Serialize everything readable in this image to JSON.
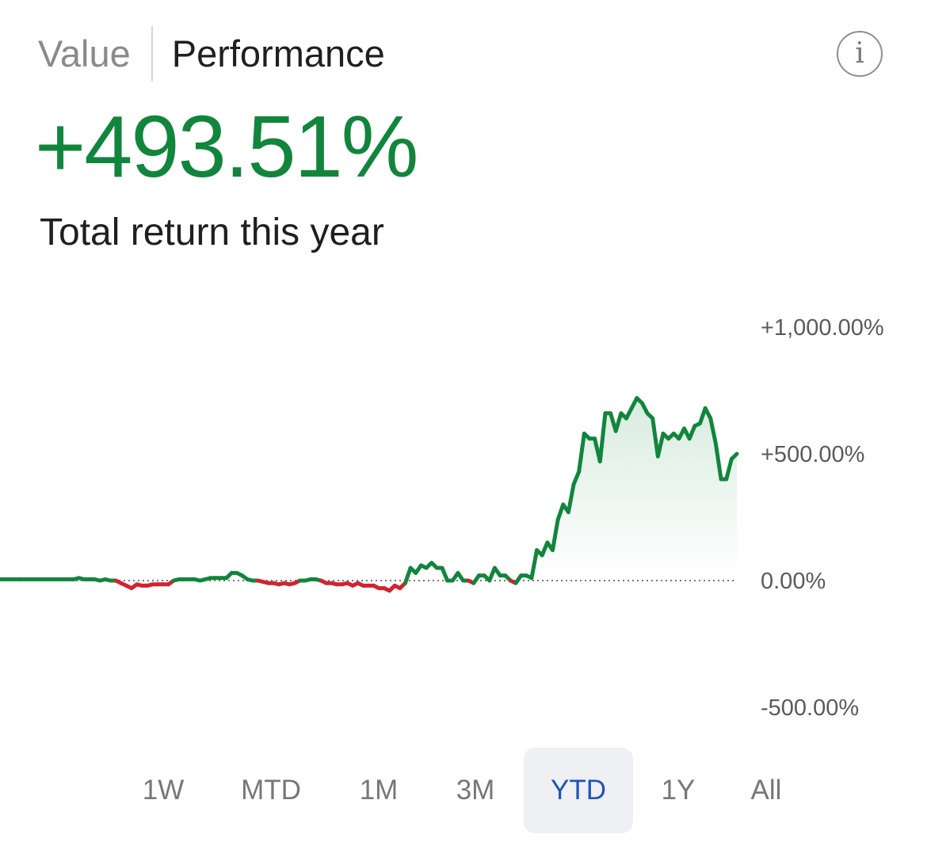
{
  "tabs": {
    "value": "Value",
    "performance": "Performance",
    "active": "Performance"
  },
  "info_icon": {
    "name": "info-icon",
    "glyph": "i"
  },
  "summary": {
    "value": "+493.51%",
    "label": "Total return this year",
    "color": "#12853d"
  },
  "range_options": [
    "1W",
    "MTD",
    "1M",
    "3M",
    "YTD",
    "1Y",
    "All"
  ],
  "selected_range": "YTD",
  "colors": {
    "positive": "#12853d",
    "negative": "#d1242f",
    "baseline": "#777777",
    "active_tab_bg": "#eef0f4",
    "active_tab_text": "#1f55b8"
  },
  "chart_data": {
    "type": "line",
    "title": "",
    "xlabel": "",
    "ylabel": "",
    "y_tick_labels": [
      "+1,000.00%",
      "+500.00%",
      "0.00%",
      "-500.00%"
    ],
    "y_ticks": [
      1000,
      500,
      0,
      -500
    ],
    "ylim": [
      -500,
      1000
    ],
    "baseline": 0,
    "grid": false,
    "legend": "none",
    "series": [
      {
        "values": [
          5,
          5,
          5,
          5,
          5,
          5,
          5,
          5,
          5,
          5,
          5,
          5,
          5,
          5,
          5,
          10,
          5,
          5,
          5,
          0,
          5,
          0,
          0,
          -10,
          -20,
          -30,
          -15,
          -20,
          -20,
          -15,
          -15,
          -15,
          -15,
          0,
          5,
          5,
          5,
          5,
          0,
          5,
          10,
          10,
          10,
          10,
          30,
          30,
          20,
          5,
          0,
          0,
          -5,
          -10,
          -10,
          -15,
          -10,
          -15,
          -10,
          0,
          0,
          5,
          5,
          0,
          -10,
          -10,
          -15,
          -15,
          -10,
          -20,
          -10,
          -20,
          -20,
          -20,
          -30,
          -30,
          -40,
          -20,
          -30,
          -10,
          50,
          30,
          60,
          50,
          70,
          50,
          50,
          0,
          0,
          30,
          0,
          0,
          -10,
          20,
          20,
          0,
          50,
          20,
          20,
          0,
          -10,
          20,
          20,
          10,
          120,
          100,
          150,
          120,
          240,
          300,
          270,
          380,
          430,
          580,
          560,
          560,
          470,
          660,
          660,
          590,
          660,
          640,
          680,
          720,
          700,
          660,
          640,
          490,
          580,
          560,
          580,
          560,
          600,
          560,
          610,
          620,
          680,
          640,
          540,
          400,
          400,
          480,
          500
        ],
        "color_rule": "green above 0, red below 0"
      }
    ]
  }
}
